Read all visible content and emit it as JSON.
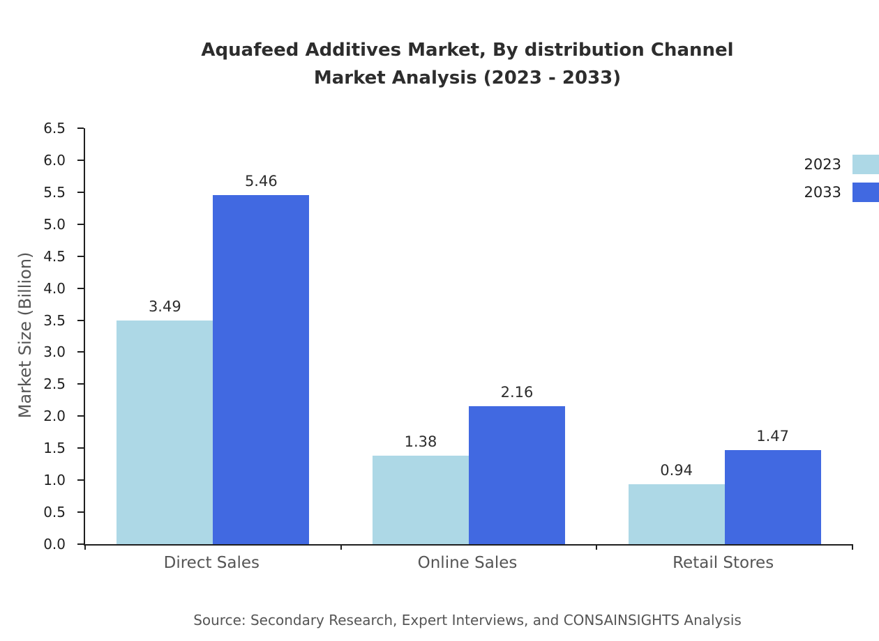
{
  "title": {
    "line1": "Aquafeed Additives Market, By distribution Channel",
    "line2": "Market Analysis (2023 - 2033)"
  },
  "source": "Source: Secondary Research, Expert Interviews, and CONSAINSIGHTS Analysis",
  "chart_data": {
    "type": "bar",
    "categories": [
      "Direct Sales",
      "Online Sales",
      "Retail Stores"
    ],
    "series": [
      {
        "name": "2023",
        "color": "#ADD8E6",
        "values": [
          3.49,
          1.38,
          0.94
        ]
      },
      {
        "name": "2033",
        "color": "#4169E1",
        "values": [
          5.46,
          2.16,
          1.47
        ]
      }
    ],
    "title": "Aquafeed Additives Market, By distribution Channel Market Analysis (2023 - 2033)",
    "xlabel": "",
    "ylabel": "Market Size (Billion)",
    "ylim": [
      0,
      6.5
    ],
    "ytick_step": 0.5,
    "grid": false,
    "legend_position": "top-right",
    "value_label_decimals": 2
  }
}
